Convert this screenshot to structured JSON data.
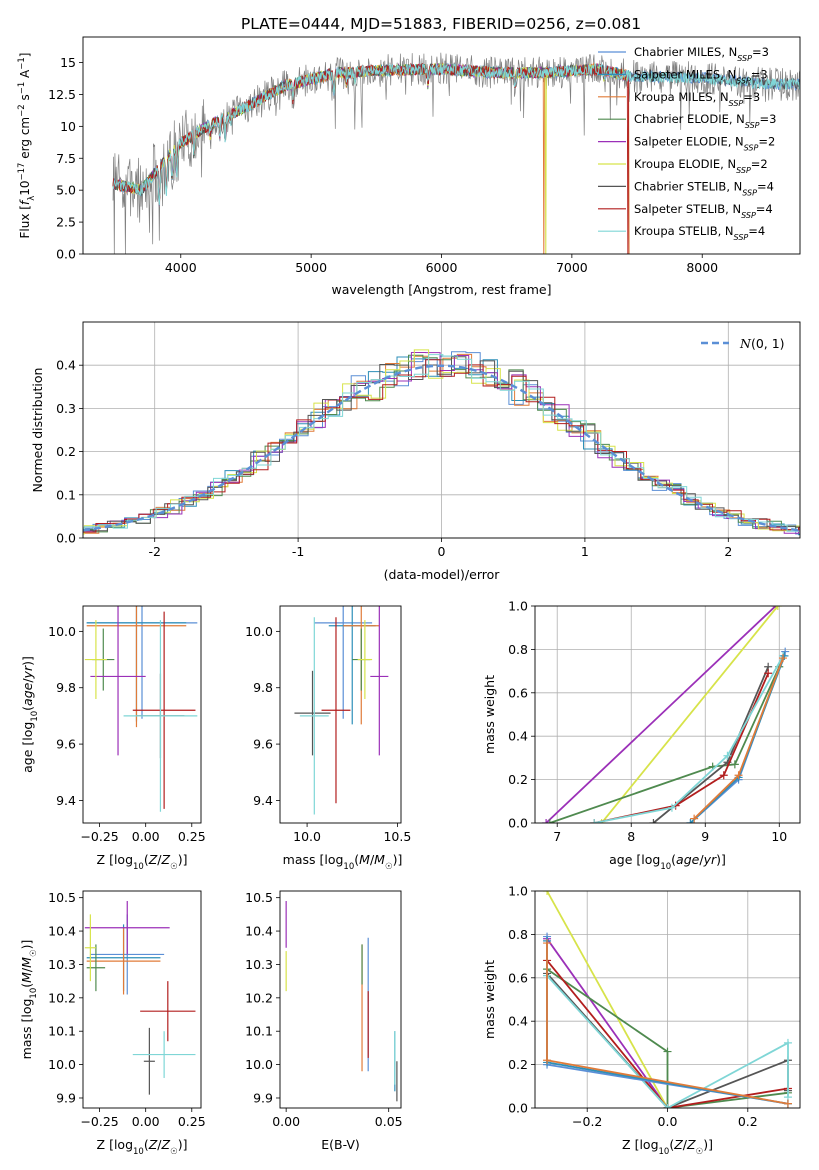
{
  "figure": {
    "title": "PLATE=0444, MJD=51883, FIBERID=0256, z=0.081"
  },
  "models": [
    {
      "name": "Chabrier MILES",
      "nssp": "3",
      "color": "#5b8fd6"
    },
    {
      "name": "Salpeter MILES",
      "nssp": "3",
      "color": "#2d8fb8"
    },
    {
      "name": "Kroupa MILES",
      "nssp": "3",
      "color": "#e07b39"
    },
    {
      "name": "Chabrier ELODIE",
      "nssp": "3",
      "color": "#4f8a4f"
    },
    {
      "name": "Salpeter ELODIE",
      "nssp": "2",
      "color": "#9b30b8"
    },
    {
      "name": "Kroupa ELODIE",
      "nssp": "2",
      "color": "#d7e34a"
    },
    {
      "name": "Chabrier STELIB",
      "nssp": "4",
      "color": "#555555"
    },
    {
      "name": "Salpeter STELIB",
      "nssp": "4",
      "color": "#b21e1e"
    },
    {
      "name": "Kroupa STELIB",
      "nssp": "4",
      "color": "#7fd6d6"
    }
  ],
  "chart_data": [
    {
      "id": "spectrum",
      "type": "line",
      "xlabel": "wavelength [Angstrom, rest frame]",
      "ylabel": "Flux [f_λ 10^-17 erg cm^-2 s^-1 A^-1]",
      "xlim": [
        3250,
        8750
      ],
      "ylim": [
        0,
        17
      ],
      "xticks": [
        4000,
        5000,
        6000,
        7000,
        8000
      ],
      "yticks": [
        0.0,
        2.5,
        5.0,
        7.5,
        10.0,
        12.5,
        15.0
      ],
      "observed_color": "#808080",
      "continuum_anchors": [
        [
          3480,
          5.5
        ],
        [
          3700,
          5.0
        ],
        [
          3850,
          7.0
        ],
        [
          4000,
          8.7
        ],
        [
          4200,
          10.0
        ],
        [
          4500,
          11.5
        ],
        [
          4800,
          13.2
        ],
        [
          5200,
          14.2
        ],
        [
          5600,
          14.4
        ],
        [
          6000,
          14.5
        ],
        [
          6400,
          14.2
        ],
        [
          6800,
          14.2
        ],
        [
          7200,
          14.5
        ],
        [
          7450,
          13.9
        ],
        [
          8000,
          13.8
        ],
        [
          8500,
          13.3
        ],
        [
          8750,
          13.3
        ]
      ],
      "absorption_lines": [
        [
          3835,
          3.0
        ],
        [
          3889,
          2.5
        ],
        [
          3934,
          2.0
        ],
        [
          3969,
          2.0
        ],
        [
          4102,
          1.5
        ],
        [
          4227,
          0.8
        ],
        [
          4300,
          1.2
        ],
        [
          4340,
          1.5
        ],
        [
          4383,
          0.8
        ],
        [
          4861,
          1.2
        ],
        [
          5175,
          1.5
        ],
        [
          5270,
          0.8
        ],
        [
          5335,
          0.6
        ],
        [
          5895,
          1.2
        ],
        [
          6563,
          0.8
        ],
        [
          7250,
          0.8
        ]
      ],
      "model_dropouts": [
        {
          "model": 2,
          "x": 6785
        },
        {
          "model": 5,
          "x": 6800
        },
        {
          "model": 7,
          "x": 7430
        },
        {
          "model": 2,
          "x": 7440
        }
      ],
      "legend_position": "upper right",
      "grid": false
    },
    {
      "id": "residuals",
      "type": "histogram",
      "xlabel": "(data-model)/error",
      "ylabel": "Normed distribution",
      "xlim": [
        -2.5,
        2.5
      ],
      "ylim": [
        0,
        0.5
      ],
      "xticks": [
        -2,
        -1,
        0,
        1,
        2
      ],
      "yticks": [
        0.0,
        0.1,
        0.2,
        0.3,
        0.4
      ],
      "bin_width": 0.1,
      "reference_curve": {
        "label": "N(0,1)",
        "color": "#5b8fd6",
        "mean": 0,
        "sigma": 1
      },
      "legend_position": "upper right",
      "grid": true
    },
    {
      "id": "age-vs-Z",
      "type": "errorbar",
      "xlabel": "Z [log10(Z/Z☉)]",
      "ylabel": "age [log10(age/yr)]",
      "xlim": [
        -0.34,
        0.3
      ],
      "ylim": [
        9.32,
        10.09
      ],
      "xticks": [
        -0.25,
        0.0,
        0.25
      ],
      "xticklabels": [
        "−0.25",
        "0.00",
        "0.25"
      ],
      "yticks": [
        9.4,
        9.6,
        9.8,
        10.0
      ],
      "yticklabels": [
        "9.4",
        "9.6",
        "9.8",
        "10.0"
      ],
      "grid": false,
      "points": [
        {
          "model": 0,
          "x": -0.02,
          "xerr": 0.3,
          "y": 10.03,
          "yerr": 0.34
        },
        {
          "model": 1,
          "x": -0.05,
          "xerr": 0.27,
          "y": 10.03,
          "yerr": 0.35
        },
        {
          "model": 2,
          "x": -0.05,
          "xerr": 0.27,
          "y": 10.02,
          "yerr": 0.36
        },
        {
          "model": 3,
          "x": -0.23,
          "xerr": 0.06,
          "y": 9.9,
          "yerr": 0.11
        },
        {
          "model": 4,
          "x": -0.15,
          "xerr": 0.15,
          "y": 9.84,
          "yerr": 0.28
        },
        {
          "model": 5,
          "x": -0.27,
          "xerr": 0.06,
          "y": 9.9,
          "yerr": 0.14
        },
        {
          "model": 6,
          "x": 0.08,
          "xerr": 0.13,
          "y": 9.7,
          "yerr": 0.15
        },
        {
          "model": 7,
          "x": 0.1,
          "xerr": 0.17,
          "y": 9.72,
          "yerr": 0.35
        },
        {
          "model": 8,
          "x": 0.08,
          "xerr": 0.2,
          "y": 9.7,
          "yerr": 0.34
        }
      ]
    },
    {
      "id": "age-vs-mass",
      "type": "errorbar",
      "xlabel": "mass [log10(M/M☉)]",
      "ylabel": "",
      "xlim": [
        9.85,
        10.52
      ],
      "ylim": [
        9.32,
        10.09
      ],
      "xticks": [
        10.0,
        10.5
      ],
      "xticklabels": [
        "10.0",
        "10.5"
      ],
      "yticks": [
        9.4,
        9.6,
        9.8,
        10.0
      ],
      "yticklabels": [
        "9.4",
        "9.6",
        "9.8",
        "10.0"
      ],
      "grid": false,
      "points": [
        {
          "model": 0,
          "x": 10.2,
          "xerr": 0.16,
          "y": 10.03,
          "yerr": 0.34
        },
        {
          "model": 1,
          "x": 10.25,
          "xerr": 0.13,
          "y": 10.02,
          "yerr": 0.35
        },
        {
          "model": 2,
          "x": 10.3,
          "xerr": 0.1,
          "y": 10.02,
          "yerr": 0.35
        },
        {
          "model": 3,
          "x": 10.3,
          "xerr": 0.05,
          "y": 9.9,
          "yerr": 0.11
        },
        {
          "model": 4,
          "x": 10.4,
          "xerr": 0.05,
          "y": 9.84,
          "yerr": 0.28
        },
        {
          "model": 5,
          "x": 10.32,
          "xerr": 0.04,
          "y": 9.9,
          "yerr": 0.14
        },
        {
          "model": 6,
          "x": 10.03,
          "xerr": 0.1,
          "y": 9.71,
          "yerr": 0.15
        },
        {
          "model": 7,
          "x": 10.16,
          "xerr": 0.08,
          "y": 9.72,
          "yerr": 0.33
        },
        {
          "model": 8,
          "x": 10.04,
          "xerr": 0.08,
          "y": 9.7,
          "yerr": 0.35
        }
      ]
    },
    {
      "id": "weight-vs-age",
      "type": "line",
      "xlabel": "age [log10(age/yr)]",
      "ylabel": "mass weight",
      "xlim": [
        6.7,
        10.28
      ],
      "ylim": [
        0,
        1
      ],
      "xticks": [
        7,
        8,
        9,
        10
      ],
      "xticklabels": [
        "7",
        "8",
        "9",
        "10"
      ],
      "yticks": [
        0.0,
        0.2,
        0.4,
        0.6,
        0.8,
        1.0
      ],
      "yticklabels": [
        "0.0",
        "0.2",
        "0.4",
        "0.6",
        "0.8",
        "1.0"
      ],
      "grid": true,
      "series": [
        {
          "model": 4,
          "points": [
            [
              6.85,
              0.0
            ],
            [
              9.95,
              1.0
            ]
          ]
        },
        {
          "model": 5,
          "points": [
            [
              7.6,
              0.0
            ],
            [
              9.98,
              1.0
            ]
          ]
        },
        {
          "model": 3,
          "points": [
            [
              6.9,
              0.0
            ],
            [
              9.1,
              0.26
            ],
            [
              9.4,
              0.27
            ],
            [
              10.0,
              0.72
            ]
          ]
        },
        {
          "model": 6,
          "points": [
            [
              8.3,
              0.0
            ],
            [
              9.3,
              0.28
            ],
            [
              9.85,
              0.72
            ]
          ]
        },
        {
          "model": 7,
          "points": [
            [
              7.5,
              0.0
            ],
            [
              8.6,
              0.08
            ],
            [
              9.25,
              0.22
            ],
            [
              9.85,
              0.69
            ]
          ]
        },
        {
          "model": 8,
          "points": [
            [
              7.5,
              0.0
            ],
            [
              8.55,
              0.07
            ],
            [
              9.3,
              0.31
            ],
            [
              10.05,
              0.77
            ]
          ]
        },
        {
          "model": 0,
          "points": [
            [
              8.8,
              0.0
            ],
            [
              9.45,
              0.2
            ],
            [
              10.08,
              0.79
            ]
          ]
        },
        {
          "model": 1,
          "points": [
            [
              8.8,
              0.0
            ],
            [
              9.45,
              0.21
            ],
            [
              10.07,
              0.77
            ]
          ]
        },
        {
          "model": 2,
          "points": [
            [
              8.85,
              0.02
            ],
            [
              9.45,
              0.22
            ],
            [
              10.05,
              0.76
            ]
          ]
        }
      ]
    },
    {
      "id": "mass-vs-Z",
      "type": "errorbar",
      "xlabel": "Z [log10(Z/Z☉)]",
      "ylabel": "mass [log10(M/M☉)]",
      "xlim": [
        -0.34,
        0.3
      ],
      "ylim": [
        9.87,
        10.52
      ],
      "xticks": [
        -0.25,
        0.0,
        0.25
      ],
      "xticklabels": [
        "−0.25",
        "0.00",
        "0.25"
      ],
      "yticks": [
        9.9,
        10.0,
        10.1,
        10.2,
        10.3,
        10.4,
        10.5
      ],
      "yticklabels": [
        "9.9",
        "10.0",
        "10.1",
        "10.2",
        "10.3",
        "10.4",
        "10.5"
      ],
      "grid": false,
      "points": [
        {
          "model": 0,
          "x": -0.1,
          "xerr": 0.2,
          "y": 10.33,
          "yerr": 0.12
        },
        {
          "model": 1,
          "x": -0.12,
          "xerr": 0.2,
          "y": 10.32,
          "yerr": 0.1
        },
        {
          "model": 2,
          "x": -0.12,
          "xerr": 0.2,
          "y": 10.31,
          "yerr": 0.1
        },
        {
          "model": 3,
          "x": -0.27,
          "xerr": 0.05,
          "y": 10.29,
          "yerr": 0.07
        },
        {
          "model": 4,
          "x": -0.1,
          "xerr": 0.23,
          "y": 10.41,
          "yerr": 0.08
        },
        {
          "model": 5,
          "x": -0.3,
          "xerr": 0.03,
          "y": 10.35,
          "yerr": 0.1
        },
        {
          "model": 6,
          "x": 0.02,
          "xerr": 0.03,
          "y": 10.01,
          "yerr": 0.1
        },
        {
          "model": 7,
          "x": 0.12,
          "xerr": 0.15,
          "y": 10.16,
          "yerr": 0.09
        },
        {
          "model": 8,
          "x": 0.1,
          "xerr": 0.17,
          "y": 10.03,
          "yerr": 0.07
        }
      ]
    },
    {
      "id": "mass-vs-EBV",
      "type": "errorbar",
      "xlabel": "E(B-V)",
      "ylabel": "",
      "xlim": [
        -0.003,
        0.056
      ],
      "ylim": [
        9.87,
        10.52
      ],
      "xticks": [
        0.0,
        0.05
      ],
      "xticklabels": [
        "0.00",
        "0.05"
      ],
      "yticks": [
        9.9,
        10.0,
        10.1,
        10.2,
        10.3,
        10.4,
        10.5
      ],
      "yticklabels": [
        "9.9",
        "10.0",
        "10.1",
        "10.2",
        "10.3",
        "10.4",
        "10.5"
      ],
      "grid": false,
      "points": [
        {
          "model": 0,
          "x": 0.04,
          "xerr": 0,
          "y": 10.18,
          "yerr": 0.2
        },
        {
          "model": 1,
          "x": 0.053,
          "xerr": 0,
          "y": 10.01,
          "yerr": 0.09
        },
        {
          "model": 2,
          "x": 0.037,
          "xerr": 0,
          "y": 10.17,
          "yerr": 0.19
        },
        {
          "model": 3,
          "x": 0.037,
          "xerr": 0,
          "y": 10.3,
          "yerr": 0.06
        },
        {
          "model": 4,
          "x": 0.0,
          "xerr": 0,
          "y": 10.42,
          "yerr": 0.07
        },
        {
          "model": 5,
          "x": 0.0,
          "xerr": 0,
          "y": 10.28,
          "yerr": 0.06
        },
        {
          "model": 6,
          "x": 0.054,
          "xerr": 0,
          "y": 9.95,
          "yerr": 0.06
        },
        {
          "model": 7,
          "x": 0.04,
          "xerr": 0,
          "y": 10.12,
          "yerr": 0.1
        },
        {
          "model": 8,
          "x": 0.053,
          "xerr": 0,
          "y": 10.02,
          "yerr": 0.08
        }
      ]
    },
    {
      "id": "weight-vs-Z",
      "type": "line",
      "xlabel": "Z [log10(Z/Z☉)]",
      "ylabel": "mass weight",
      "xlim": [
        -0.33,
        0.33
      ],
      "ylim": [
        0,
        1
      ],
      "xticks": [
        -0.2,
        0.0,
        0.2
      ],
      "xticklabels": [
        "−0.2",
        "0.0",
        "0.2"
      ],
      "yticks": [
        0.0,
        0.2,
        0.4,
        0.6,
        0.8,
        1.0
      ],
      "yticklabels": [
        "0.0",
        "0.2",
        "0.4",
        "0.6",
        "0.8",
        "1.0"
      ],
      "grid": true,
      "series": [
        {
          "model": 4,
          "points": [
            [
              -0.3,
              0.78
            ],
            [
              0.0,
              0.0
            ]
          ]
        },
        {
          "model": 5,
          "points": [
            [
              -0.3,
              1.0
            ],
            [
              0.0,
              0.0
            ]
          ]
        },
        {
          "model": 3,
          "points": [
            [
              -0.3,
              0.64
            ],
            [
              0.0,
              0.26
            ],
            [
              0.0,
              0.0
            ],
            [
              0.3,
              0.07
            ]
          ]
        },
        {
          "model": 6,
          "points": [
            [
              -0.3,
              0.62
            ],
            [
              0.0,
              0.0
            ],
            [
              0.3,
              0.22
            ],
            [
              0.3,
              0.08
            ]
          ]
        },
        {
          "model": 7,
          "points": [
            [
              -0.3,
              0.68
            ],
            [
              0.0,
              0.0
            ],
            [
              0.3,
              0.09
            ]
          ]
        },
        {
          "model": 8,
          "points": [
            [
              -0.3,
              0.61
            ],
            [
              0.0,
              0.0
            ],
            [
              0.3,
              0.3
            ],
            [
              0.3,
              0.05
            ]
          ]
        },
        {
          "model": 0,
          "points": [
            [
              -0.3,
              0.79
            ],
            [
              -0.3,
              0.2
            ],
            [
              0.3,
              0.02
            ]
          ]
        },
        {
          "model": 1,
          "points": [
            [
              -0.3,
              0.77
            ],
            [
              -0.3,
              0.21
            ],
            [
              0.3,
              0.02
            ]
          ]
        },
        {
          "model": 2,
          "points": [
            [
              -0.3,
              0.76
            ],
            [
              -0.3,
              0.22
            ],
            [
              0.3,
              0.02
            ]
          ]
        }
      ]
    }
  ]
}
